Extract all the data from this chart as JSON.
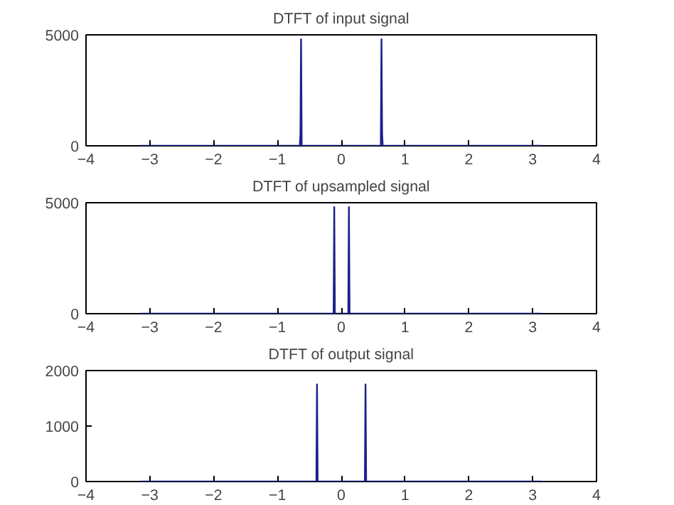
{
  "chart_data": [
    {
      "type": "line",
      "title": "DTFT of input signal",
      "xlim": [
        -4,
        4
      ],
      "xticks": [
        -4,
        -3,
        -2,
        -1,
        0,
        1,
        2,
        3,
        4
      ],
      "ylim": [
        0,
        5000
      ],
      "yticks": [
        0,
        5000
      ],
      "grid": false,
      "series": [
        {
          "color": "#1f1f8c",
          "x": [
            -3.14,
            -0.65,
            -0.64,
            -0.63,
            -0.62,
            0.62,
            0.63,
            0.64,
            0.65,
            3.14
          ],
          "values": [
            0,
            0,
            500,
            4800,
            0,
            0,
            4800,
            500,
            0,
            0
          ]
        }
      ]
    },
    {
      "type": "line",
      "title": "DTFT of upsampled signal",
      "xlim": [
        -4,
        4
      ],
      "xticks": [
        -4,
        -3,
        -2,
        -1,
        0,
        1,
        2,
        3,
        4
      ],
      "ylim": [
        0,
        5000
      ],
      "yticks": [
        0,
        5000
      ],
      "grid": false,
      "series": [
        {
          "color": "#1f1f8c",
          "x": [
            -3.14,
            -0.12,
            -0.11,
            -0.1,
            0.11,
            0.12,
            0.13,
            3.14
          ],
          "values": [
            0,
            0,
            4800,
            0,
            0,
            4800,
            0,
            0
          ]
        }
      ]
    },
    {
      "type": "line",
      "title": "DTFT of output signal",
      "xlim": [
        -4,
        4
      ],
      "xticks": [
        -4,
        -3,
        -2,
        -1,
        0,
        1,
        2,
        3,
        4
      ],
      "ylim": [
        0,
        2000
      ],
      "yticks": [
        0,
        1000,
        2000
      ],
      "grid": false,
      "series": [
        {
          "color": "#1f1f8c",
          "x": [
            -3.14,
            -0.39,
            -0.38,
            -0.37,
            0.37,
            0.38,
            0.39,
            3.14
          ],
          "values": [
            0,
            0,
            1750,
            0,
            0,
            1750,
            0,
            0
          ]
        }
      ]
    }
  ]
}
